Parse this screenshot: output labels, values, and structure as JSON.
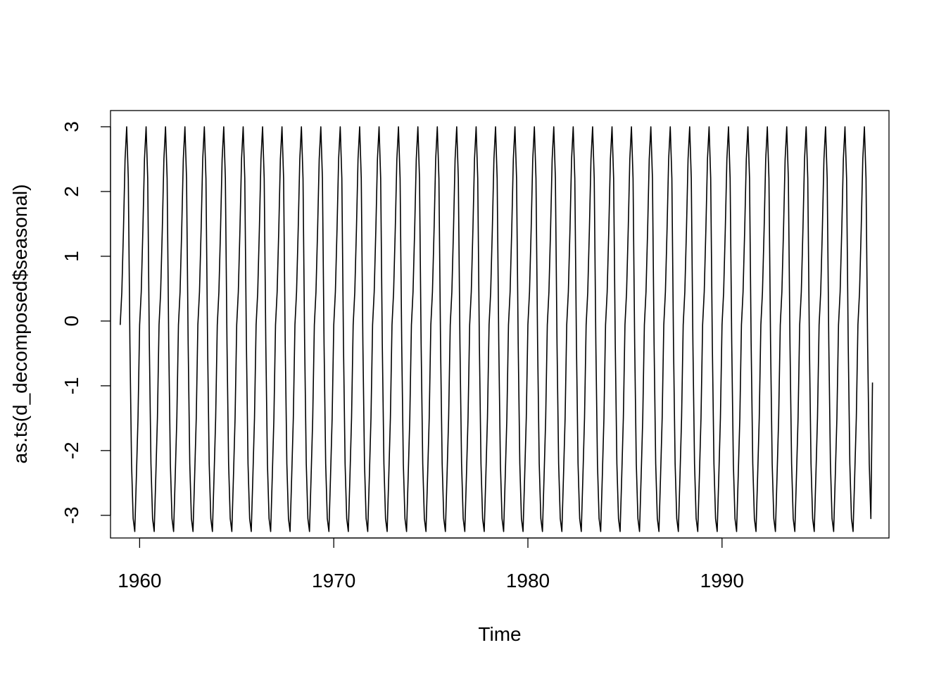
{
  "chart_data": {
    "type": "line",
    "title": "",
    "xlabel": "Time",
    "ylabel": "as.ts(d_decomposed$seasonal)",
    "xlim": [
      1958.5,
      1998.6
    ],
    "ylim": [
      -3.35,
      3.25
    ],
    "x_ticks": [
      1960,
      1970,
      1980,
      1990
    ],
    "y_ticks": [
      -3,
      -2,
      -1,
      0,
      1,
      2,
      3
    ],
    "x_tick_labels": [
      "1960",
      "1970",
      "1980",
      "1990"
    ],
    "y_tick_labels": [
      "-3",
      "-2",
      "-1",
      "0",
      "1",
      "2",
      "3"
    ],
    "grid": false,
    "series": [
      {
        "start": 1959.0,
        "end": 1997.75,
        "frequency": 12,
        "cycle_values": [
          -0.06,
          0.45,
          1.4,
          2.5,
          3.0,
          2.2,
          -0.35,
          -2.2,
          -3.05,
          -3.25,
          -2.4,
          -1.5
        ],
        "final_value": -0.95,
        "color": "#000000"
      }
    ]
  }
}
